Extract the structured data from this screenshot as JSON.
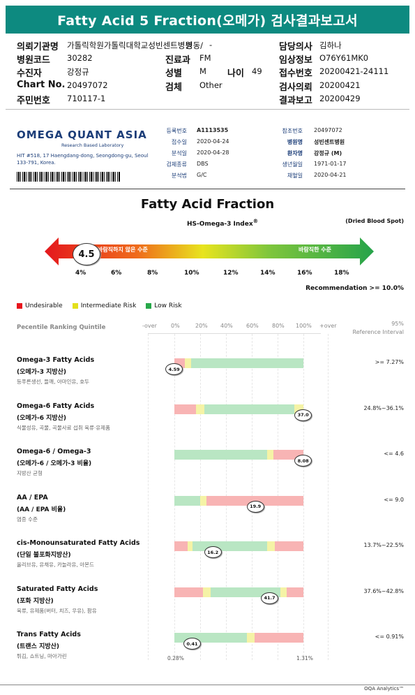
{
  "report_title": "Fatty Acid 5 Fraction(오메가) 검사결과보고서",
  "patient": {
    "institution_label": "의뢰기관명",
    "institution": "가톨릭학원가톨릭대학교성빈센트병원",
    "hospital_code_label": "병원코드",
    "hospital_code": "30282",
    "patient_label": "수진자",
    "patient_name": "강정규",
    "chart_label": "Chart No.",
    "chart_no": "20497072",
    "rrn_label": "주민번호",
    "rrn": "710117-1",
    "ward_label": "병동/",
    "ward": "-",
    "dept_label": "진료과",
    "dept": "FM",
    "sex_label": "성별",
    "sex": "M",
    "age_label": "나이",
    "age": "49",
    "specimen_label": "검체",
    "specimen": "Other",
    "doctor_label": "담당의사",
    "doctor": "김하나",
    "clinical_label": "임상정보",
    "clinical": "O76Y61MK0",
    "receipt_label": "접수번호",
    "receipt": "20200421-24111",
    "request_label": "검사의뢰",
    "request_date": "20200421",
    "report_label": "결과보고",
    "report_date": "20200429"
  },
  "lab": {
    "name": "OMEGA QUANT ASIA",
    "tagline": "Research Based Laboratory",
    "address": "HIT #518, 17 Haengdang-dong, Seongdong-gu, Seoul 133-791, Korea."
  },
  "card": {
    "left": [
      {
        "k": "등록번호",
        "v": "A1113535"
      },
      {
        "k": "접수일",
        "v": "2020-04-24"
      },
      {
        "k": "분석일",
        "v": "2020-04-28"
      },
      {
        "k": "검체종류",
        "v": "DBS"
      },
      {
        "k": "분석법",
        "v": "G/C"
      }
    ],
    "right": [
      {
        "k": "참조번호",
        "v": "20497072"
      },
      {
        "k": "병원명",
        "v": "성빈센트병원"
      },
      {
        "k": "환자명",
        "v": "강정규 (M)"
      },
      {
        "k": "생년월일",
        "v": "1971-01-17"
      },
      {
        "k": "채혈일",
        "v": "2020-04-21"
      }
    ]
  },
  "fraction_title": "Fatty Acid Fraction",
  "index_label": "HS-Omega-3 Index",
  "index_sup": "®",
  "specimen_note": "(Dried Blood Spot)",
  "index": {
    "value": "4.5",
    "bad_label": "바람직하지 않은 수준",
    "good_label": "바람직한 수준",
    "ticks": [
      "4%",
      "6%",
      "8%",
      "10%",
      "12%",
      "14%",
      "16%",
      "18%"
    ],
    "recommendation": "Recommendation  >= 10.0%"
  },
  "legend": [
    {
      "label": "Undesirable",
      "color": "#e8141c"
    },
    {
      "label": "Intermediate Risk",
      "color": "#e3e01b"
    },
    {
      "label": "Low Risk",
      "color": "#27a84a"
    }
  ],
  "percentile_header": "Pecentile Ranking Quintile",
  "axis_labels": [
    "-over",
    "0%",
    "20%",
    "40%",
    "60%",
    "80%",
    "100%",
    "+over"
  ],
  "ref_header": [
    "95%",
    "Reference Interval"
  ],
  "rows": [
    {
      "name": "Omega-3 Fatty Acids",
      "ko": "(오메가-3 지방산)",
      "desc": "등푸른생선, 들깨, 아마인유, 호두",
      "value": "4.59",
      "ref": ">= 7.27%",
      "segs": [
        {
          "f": 0,
          "t": 0.08,
          "c": "#f8b4b4"
        },
        {
          "f": 0.08,
          "t": 0.13,
          "c": "#f5f3a6"
        },
        {
          "f": 0.13,
          "t": 1,
          "c": "#b9e6c3"
        }
      ],
      "pos": -0.01
    },
    {
      "name": "Omega-6 Fatty Acids",
      "ko": "(오메가-6 지방산)",
      "desc": "식물성유, 곡물, 곡물사료 섭취 육류·유제품",
      "value": "37.0",
      "ref": "24.8%~36.1%",
      "segs": [
        {
          "f": 0,
          "t": 0.17,
          "c": "#f8b4b4"
        },
        {
          "f": 0.17,
          "t": 0.23,
          "c": "#f5f3a6"
        },
        {
          "f": 0.23,
          "t": 0.93,
          "c": "#b9e6c3"
        },
        {
          "f": 0.93,
          "t": 1,
          "c": "#f5f3a6"
        }
      ],
      "pos": 0.99
    },
    {
      "name": "Omega-6 / Omega-3",
      "ko": "(오메가-6 / 오메가-3 비율)",
      "desc": "지방산 균형",
      "value": "8.08",
      "ref": "<= 4.6",
      "segs": [
        {
          "f": 0,
          "t": 0.72,
          "c": "#b9e6c3"
        },
        {
          "f": 0.72,
          "t": 0.77,
          "c": "#f5f3a6"
        },
        {
          "f": 0.77,
          "t": 1,
          "c": "#f8b4b4"
        }
      ],
      "pos": 0.99
    },
    {
      "name": "AA / EPA",
      "ko": "(AA / EPA 비율)",
      "desc": "염증 수준",
      "value": "19.9",
      "ref": "<= 9.0",
      "segs": [
        {
          "f": 0,
          "t": 0.2,
          "c": "#b9e6c3"
        },
        {
          "f": 0.2,
          "t": 0.25,
          "c": "#f5f3a6"
        },
        {
          "f": 0.25,
          "t": 1,
          "c": "#f8b4b4"
        }
      ],
      "pos": 0.62
    },
    {
      "name": "cis-Monounsaturated Fatty Acids",
      "ko": "(단일 불포화지방산)",
      "desc": "올리브유, 유채유, 카놀라유, 아몬드",
      "value": "16.2",
      "ref": "13.7%~22.5%",
      "segs": [
        {
          "f": 0,
          "t": 0.1,
          "c": "#f8b4b4"
        },
        {
          "f": 0.1,
          "t": 0.14,
          "c": "#f5f3a6"
        },
        {
          "f": 0.14,
          "t": 0.72,
          "c": "#b9e6c3"
        },
        {
          "f": 0.72,
          "t": 0.78,
          "c": "#f5f3a6"
        },
        {
          "f": 0.78,
          "t": 1,
          "c": "#f8b4b4"
        }
      ],
      "pos": 0.29
    },
    {
      "name": "Saturated Fatty Acids",
      "ko": "(포화 지방산)",
      "desc": "육류, 유제품(버터, 치즈, 우유), 팜유",
      "value": "41.7",
      "ref": "37.6%~42.8%",
      "segs": [
        {
          "f": 0,
          "t": 0.22,
          "c": "#f8b4b4"
        },
        {
          "f": 0.22,
          "t": 0.28,
          "c": "#f5f3a6"
        },
        {
          "f": 0.28,
          "t": 0.82,
          "c": "#b9e6c3"
        },
        {
          "f": 0.82,
          "t": 0.87,
          "c": "#f5f3a6"
        },
        {
          "f": 0.87,
          "t": 1,
          "c": "#f8b4b4"
        }
      ],
      "pos": 0.73
    },
    {
      "name": "Trans Fatty Acids",
      "ko": "(트랜스 지방산)",
      "desc": "튀김, 쇼트닝, 마아가린",
      "value": "0.41",
      "ref": "<= 0.91%",
      "segs": [
        {
          "f": 0,
          "t": 0.56,
          "c": "#b9e6c3"
        },
        {
          "f": 0.56,
          "t": 0.62,
          "c": "#f5f3a6"
        },
        {
          "f": 0.62,
          "t": 1,
          "c": "#f8b4b4"
        }
      ],
      "pos": 0.13
    }
  ],
  "axis_min": "0.28%",
  "axis_max": "1.31%",
  "footer": "OQA Analytics™"
}
